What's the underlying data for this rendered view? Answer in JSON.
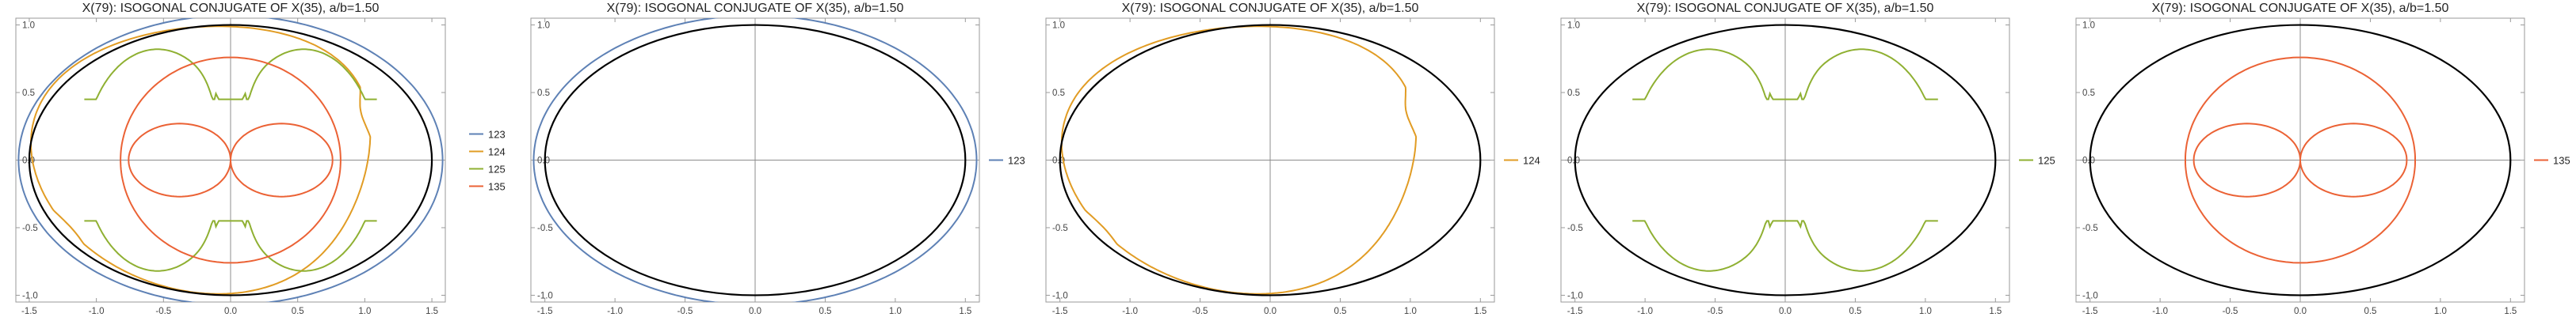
{
  "chart_data": [
    {
      "type": "line",
      "title": "X(79): ISOGONAL CONJUGATE OF X(35), a/b=1.50",
      "xlim": [
        -1.6,
        1.6
      ],
      "ylim": [
        -1.05,
        1.05
      ],
      "x_ticks": [
        "-1.5",
        "-1.0",
        "-0.5",
        "0.0",
        "0.5",
        "1.0",
        "1.5"
      ],
      "x_tick_values": [
        -1.5,
        -1.0,
        -0.5,
        0.0,
        0.5,
        1.0,
        1.5
      ],
      "y_ticks": [
        "1.0",
        "0.5",
        "0.0",
        "-0.5",
        "-1.0"
      ],
      "y_tick_values": [
        1.0,
        0.5,
        0.0,
        -0.5,
        -1.0
      ],
      "ellipse": {
        "a": 1.5,
        "b": 1.0,
        "color": "#000000"
      },
      "legend_position": "right",
      "series": [
        {
          "name": "123",
          "color": "#5E81B5",
          "curve": "123"
        },
        {
          "name": "124",
          "color": "#E19C24",
          "curve": "124"
        },
        {
          "name": "125",
          "color": "#8FB032",
          "curve": "125"
        },
        {
          "name": "135",
          "color": "#EB6235",
          "curve": "135"
        }
      ]
    },
    {
      "type": "line",
      "title": "X(79): ISOGONAL CONJUGATE OF X(35), a/b=1.50",
      "xlim": [
        -1.6,
        1.6
      ],
      "ylim": [
        -1.05,
        1.05
      ],
      "x_ticks": [
        "-1.5",
        "-1.0",
        "-0.5",
        "0.0",
        "0.5",
        "1.0",
        "1.5"
      ],
      "x_tick_values": [
        -1.5,
        -1.0,
        -0.5,
        0.0,
        0.5,
        1.0,
        1.5
      ],
      "y_ticks": [
        "1.0",
        "0.5",
        "0.0",
        "-0.5",
        "-1.0"
      ],
      "y_tick_values": [
        1.0,
        0.5,
        0.0,
        -0.5,
        -1.0
      ],
      "ellipse": {
        "a": 1.5,
        "b": 1.0,
        "color": "#000000"
      },
      "legend_position": "right",
      "series": [
        {
          "name": "123",
          "color": "#5E81B5",
          "curve": "123"
        }
      ]
    },
    {
      "type": "line",
      "title": "X(79): ISOGONAL CONJUGATE OF X(35), a/b=1.50",
      "xlim": [
        -1.6,
        1.6
      ],
      "ylim": [
        -1.05,
        1.05
      ],
      "x_ticks": [
        "-1.5",
        "-1.0",
        "-0.5",
        "0.0",
        "0.5",
        "1.0",
        "1.5"
      ],
      "x_tick_values": [
        -1.5,
        -1.0,
        -0.5,
        0.0,
        0.5,
        1.0,
        1.5
      ],
      "y_ticks": [
        "1.0",
        "0.5",
        "0.0",
        "-0.5",
        "-1.0"
      ],
      "y_tick_values": [
        1.0,
        0.5,
        0.0,
        -0.5,
        -1.0
      ],
      "ellipse": {
        "a": 1.5,
        "b": 1.0,
        "color": "#000000"
      },
      "legend_position": "right",
      "series": [
        {
          "name": "124",
          "color": "#E19C24",
          "curve": "124"
        }
      ]
    },
    {
      "type": "line",
      "title": "X(79): ISOGONAL CONJUGATE OF X(35), a/b=1.50",
      "xlim": [
        -1.6,
        1.6
      ],
      "ylim": [
        -1.05,
        1.05
      ],
      "x_ticks": [
        "-1.5",
        "-1.0",
        "-0.5",
        "0.0",
        "0.5",
        "1.0",
        "1.5"
      ],
      "x_tick_values": [
        -1.5,
        -1.0,
        -0.5,
        0.0,
        0.5,
        1.0,
        1.5
      ],
      "y_ticks": [
        "1.0",
        "0.5",
        "0.0",
        "-0.5",
        "-1.0"
      ],
      "y_tick_values": [
        1.0,
        0.5,
        0.0,
        -0.5,
        -1.0
      ],
      "ellipse": {
        "a": 1.5,
        "b": 1.0,
        "color": "#000000"
      },
      "legend_position": "right",
      "series": [
        {
          "name": "125",
          "color": "#8FB032",
          "curve": "125"
        }
      ]
    },
    {
      "type": "line",
      "title": "X(79): ISOGONAL CONJUGATE OF X(35), a/b=1.50",
      "xlim": [
        -1.6,
        1.6
      ],
      "ylim": [
        -1.05,
        1.05
      ],
      "x_ticks": [
        "-1.5",
        "-1.0",
        "-0.5",
        "0.0",
        "0.5",
        "1.0",
        "1.5"
      ],
      "x_tick_values": [
        -1.5,
        -1.0,
        -0.5,
        0.0,
        0.5,
        1.0,
        1.5
      ],
      "y_ticks": [
        "1.0",
        "0.5",
        "0.0",
        "-0.5",
        "-1.0"
      ],
      "y_tick_values": [
        1.0,
        0.5,
        0.0,
        -0.5,
        -1.0
      ],
      "ellipse": {
        "a": 1.5,
        "b": 1.0,
        "color": "#000000"
      },
      "legend_position": "right",
      "series": [
        {
          "name": "135",
          "color": "#EB6235",
          "curve": "135"
        }
      ]
    }
  ]
}
